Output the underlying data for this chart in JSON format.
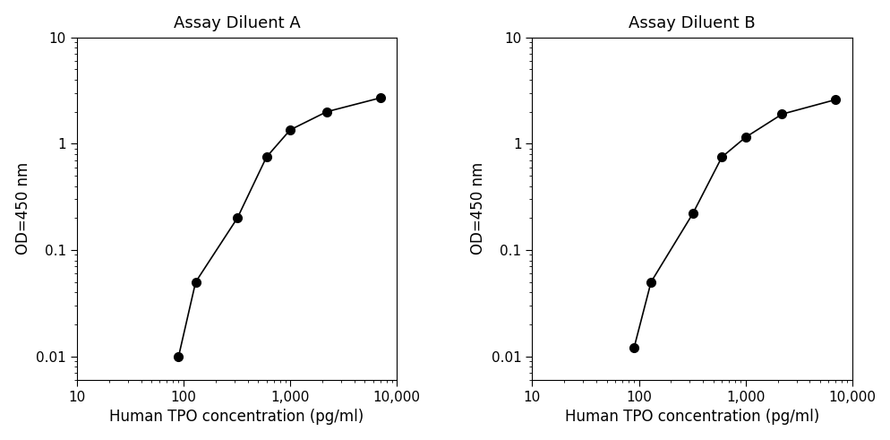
{
  "panel_A": {
    "title": "Assay Diluent A",
    "x": [
      90,
      130,
      320,
      600,
      1000,
      2200,
      7000
    ],
    "y": [
      0.01,
      0.05,
      0.2,
      0.75,
      1.35,
      2.0,
      2.7
    ]
  },
  "panel_B": {
    "title": "Assay Diluent B",
    "x": [
      90,
      130,
      320,
      600,
      1000,
      2200,
      7000
    ],
    "y": [
      0.012,
      0.05,
      0.22,
      0.75,
      1.15,
      1.9,
      2.6
    ]
  },
  "xlabel": "Human TPO concentration (pg/ml)",
  "ylabel": "OD=450 nm",
  "xlim": [
    10,
    10000
  ],
  "ylim": [
    0.006,
    10
  ],
  "line_color": "#000000",
  "marker": "o",
  "markersize": 7,
  "linewidth": 1.2,
  "title_fontsize": 13,
  "label_fontsize": 12,
  "tick_fontsize": 11,
  "background_color": "#ffffff",
  "xtick_labels": {
    "10": "10",
    "100": "100",
    "1000": "1,000",
    "10000": "10,000"
  },
  "ytick_labels": {
    "0.01": "0.01",
    "0.1": "0.1",
    "1": "1",
    "10": "10"
  }
}
